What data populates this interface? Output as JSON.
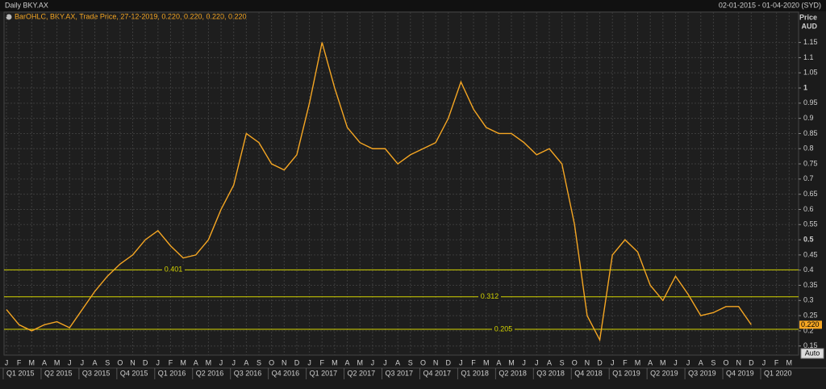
{
  "chart_data": {
    "type": "line",
    "title": "Daily BKY.AX",
    "subtitle": "02-01-2015 - 01-04-2020 (SYD)",
    "ylabel": "Price",
    "yunit": "AUD",
    "categories": [
      "J",
      "F",
      "M",
      "A",
      "M",
      "J",
      "J",
      "A",
      "S",
      "O",
      "N",
      "D",
      "J",
      "F",
      "M",
      "A",
      "M",
      "J",
      "J",
      "A",
      "S",
      "O",
      "N",
      "D",
      "J",
      "F",
      "M",
      "A",
      "M",
      "J",
      "J",
      "A",
      "S",
      "O",
      "N",
      "D",
      "J",
      "F",
      "M",
      "A",
      "M",
      "J",
      "J",
      "A",
      "S",
      "O",
      "N",
      "D",
      "J",
      "F",
      "M",
      "A",
      "M",
      "J",
      "J",
      "A",
      "S",
      "O",
      "N",
      "D",
      "J",
      "F",
      "M"
    ],
    "quarters": [
      "Q1 2015",
      "Q2 2015",
      "Q3 2015",
      "Q4 2015",
      "Q1 2016",
      "Q2 2016",
      "Q3 2016",
      "Q4 2016",
      "Q1 2017",
      "Q2 2017",
      "Q3 2017",
      "Q4 2017",
      "Q1 2018",
      "Q2 2018",
      "Q3 2018",
      "Q4 2018",
      "Q1 2019",
      "Q2 2019",
      "Q3 2019",
      "Q4 2019",
      "Q1 2020"
    ],
    "series": [
      {
        "name": "BarOHLC, BKY.AX, Trade Price, 27-12-2019, 0.220, 0.220, 0.220, 0.220",
        "color": "#f5a623",
        "values": [
          0.27,
          0.22,
          0.2,
          0.22,
          0.23,
          0.21,
          0.27,
          0.33,
          0.38,
          0.42,
          0.45,
          0.5,
          0.53,
          0.48,
          0.44,
          0.45,
          0.5,
          0.6,
          0.68,
          0.85,
          0.82,
          0.75,
          0.73,
          0.78,
          0.95,
          1.15,
          1.0,
          0.87,
          0.82,
          0.8,
          0.8,
          0.75,
          0.78,
          0.8,
          0.82,
          0.9,
          1.02,
          0.93,
          0.87,
          0.85,
          0.85,
          0.82,
          0.78,
          0.8,
          0.75,
          0.55,
          0.25,
          0.17,
          0.45,
          0.5,
          0.46,
          0.35,
          0.3,
          0.38,
          0.32,
          0.25,
          0.26,
          0.28,
          0.28,
          0.22,
          null,
          null,
          null
        ]
      }
    ],
    "hlines": [
      0.401,
      0.312,
      0.205
    ],
    "hline_color": "#d4d400",
    "last_price": {
      "value": 0.22,
      "label": "0.220"
    },
    "ylim": [
      0.12,
      1.25
    ],
    "yticks": [
      0.15,
      0.2,
      0.25,
      0.3,
      0.35,
      0.4,
      0.45,
      0.5,
      0.55,
      0.6,
      0.65,
      0.7,
      0.75,
      0.8,
      0.85,
      0.9,
      0.95,
      1,
      1.05,
      1.1,
      1.15
    ],
    "grid": true,
    "button": "Auto"
  }
}
